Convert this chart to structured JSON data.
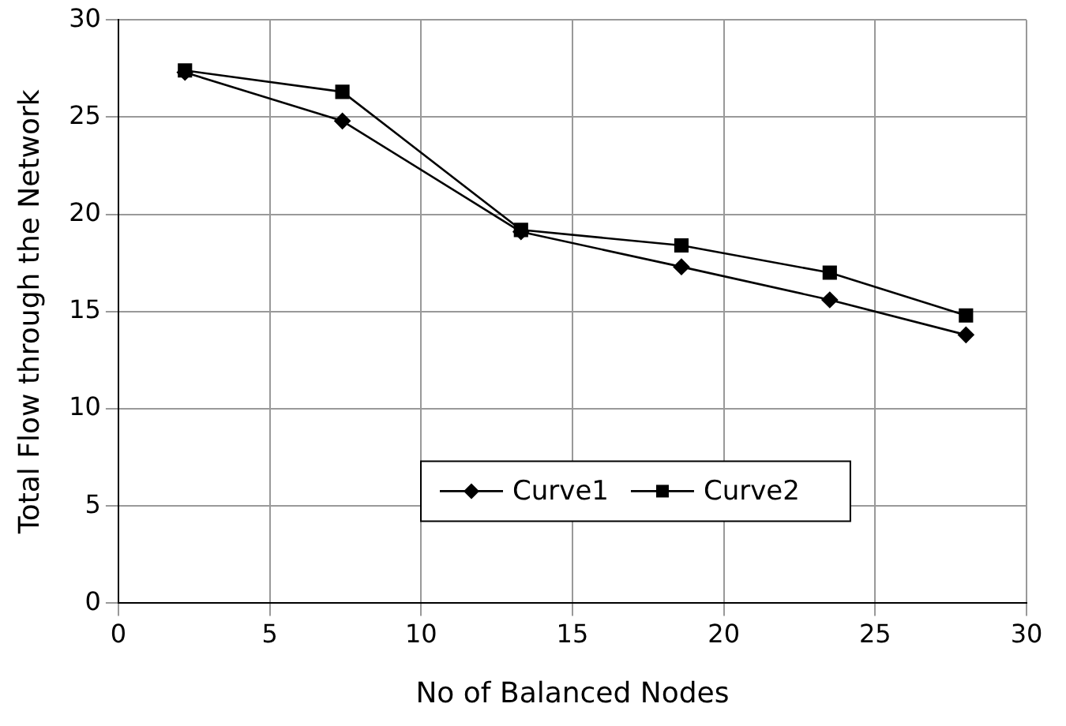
{
  "chart_data": {
    "type": "line",
    "xlabel": "No of Balanced Nodes",
    "ylabel": "Total Flow through the Network",
    "xlim": [
      0,
      30
    ],
    "xticks": [
      0,
      5,
      10,
      15,
      20,
      25,
      30
    ],
    "ylim": [
      0,
      30
    ],
    "yticks": [
      0,
      5,
      10,
      15,
      20,
      25,
      30
    ],
    "grid": true,
    "legend": "bottom",
    "line_style": "solid",
    "series": [
      {
        "name": "Curve1",
        "color": "#000000",
        "marker": "diamond",
        "x": [
          2.2,
          7.4,
          13.3,
          18.6,
          23.5,
          28
        ],
        "values": [
          27.3,
          24.8,
          19.1,
          17.3,
          15.6,
          13.8
        ]
      },
      {
        "name": "Curve2",
        "color": "#000000",
        "marker": "square",
        "x": [
          2.2,
          7.4,
          13.3,
          18.6,
          23.5,
          28
        ],
        "values": [
          27.4,
          26.3,
          19.2,
          18.4,
          17.0,
          14.8
        ]
      }
    ]
  }
}
